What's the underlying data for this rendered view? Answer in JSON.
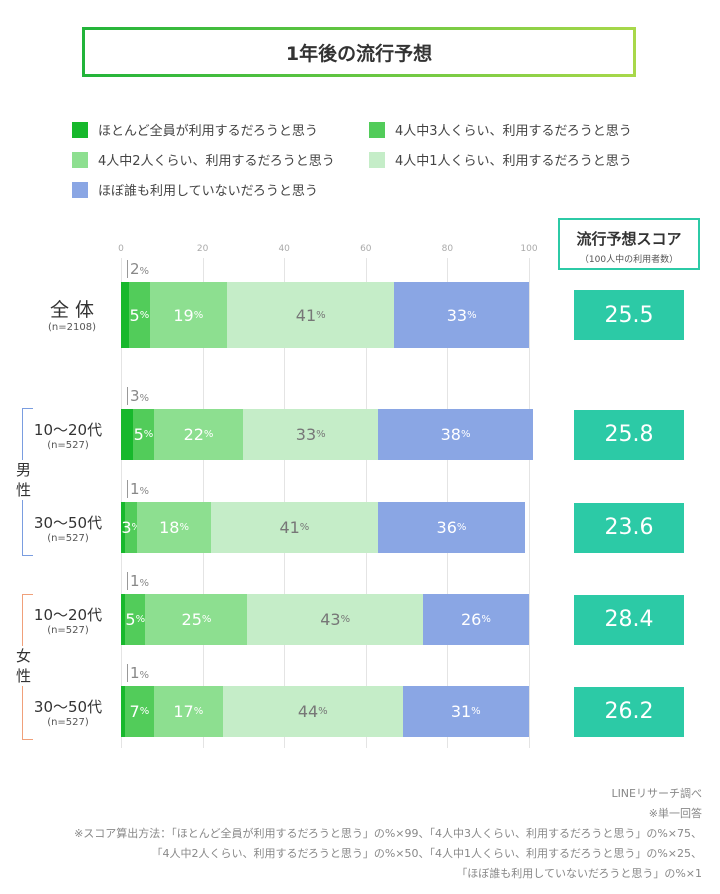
{
  "title": "1年後の流行予想",
  "legend": [
    {
      "label": "ほとんど全員が利用するだろうと思う",
      "color": "#17b82c"
    },
    {
      "label": "4人中3人くらい、利用するだろうと思う",
      "color": "#52cc5a"
    },
    {
      "label": "4人中2人くらい、利用するだろうと思う",
      "color": "#8ddf90"
    },
    {
      "label": "4人中1人くらい、利用するだろうと思う",
      "color": "#c5edc8"
    },
    {
      "label": "ほぼ誰も利用していないだろうと思う",
      "color": "#8aa6e4"
    }
  ],
  "score_header": {
    "title": "流行予想スコア",
    "subtitle": "（100人中の利用者数）"
  },
  "groups": [
    {
      "label": "男性",
      "color": "#7a9de0"
    },
    {
      "label": "女性",
      "color": "#f0a07a"
    }
  ],
  "chart_data": {
    "type": "bar",
    "orientation": "horizontal-stacked",
    "xlim": [
      0,
      100
    ],
    "ticks": [
      "0",
      "20",
      "40",
      "60",
      "80",
      "100"
    ],
    "grid": true,
    "series_names": [
      "ほとんど全員が利用するだろうと思う",
      "4人中3人くらい、利用するだろうと思う",
      "4人中2人くらい、利用するだろうと思う",
      "4人中1人くらい、利用するだろうと思う",
      "ほぼ誰も利用していないだろうと思う"
    ],
    "rows": [
      {
        "label": "全 体",
        "n": "(n=2108)",
        "values": [
          2,
          5,
          19,
          41,
          33
        ],
        "score": "25.5"
      },
      {
        "label": "10〜20代",
        "n": "(n=527)",
        "values": [
          3,
          5,
          22,
          33,
          38
        ],
        "score": "25.8"
      },
      {
        "label": "30〜50代",
        "n": "(n=527)",
        "values": [
          1,
          3,
          18,
          41,
          36
        ],
        "score": "23.6"
      },
      {
        "label": "10〜20代",
        "n": "(n=527)",
        "values": [
          1,
          5,
          25,
          43,
          26
        ],
        "score": "28.4"
      },
      {
        "label": "30〜50代",
        "n": "(n=527)",
        "values": [
          1,
          7,
          17,
          44,
          31
        ],
        "score": "26.2"
      }
    ],
    "unit": "%"
  },
  "footnotes": [
    "LINEリサーチ調べ",
    "※単一回答",
    "※スコア算出方法：「ほとんど全員が利用するだろうと思う」の%×99、「4人中3人くらい、利用するだろうと思う」の%×75、",
    "「4人中2人くらい、利用するだろうと思う」の%×50、「4人中1人くらい、利用するだろうと思う」の%×25、",
    "「ほぼ誰も利用していないだろうと思う」の%×1"
  ]
}
